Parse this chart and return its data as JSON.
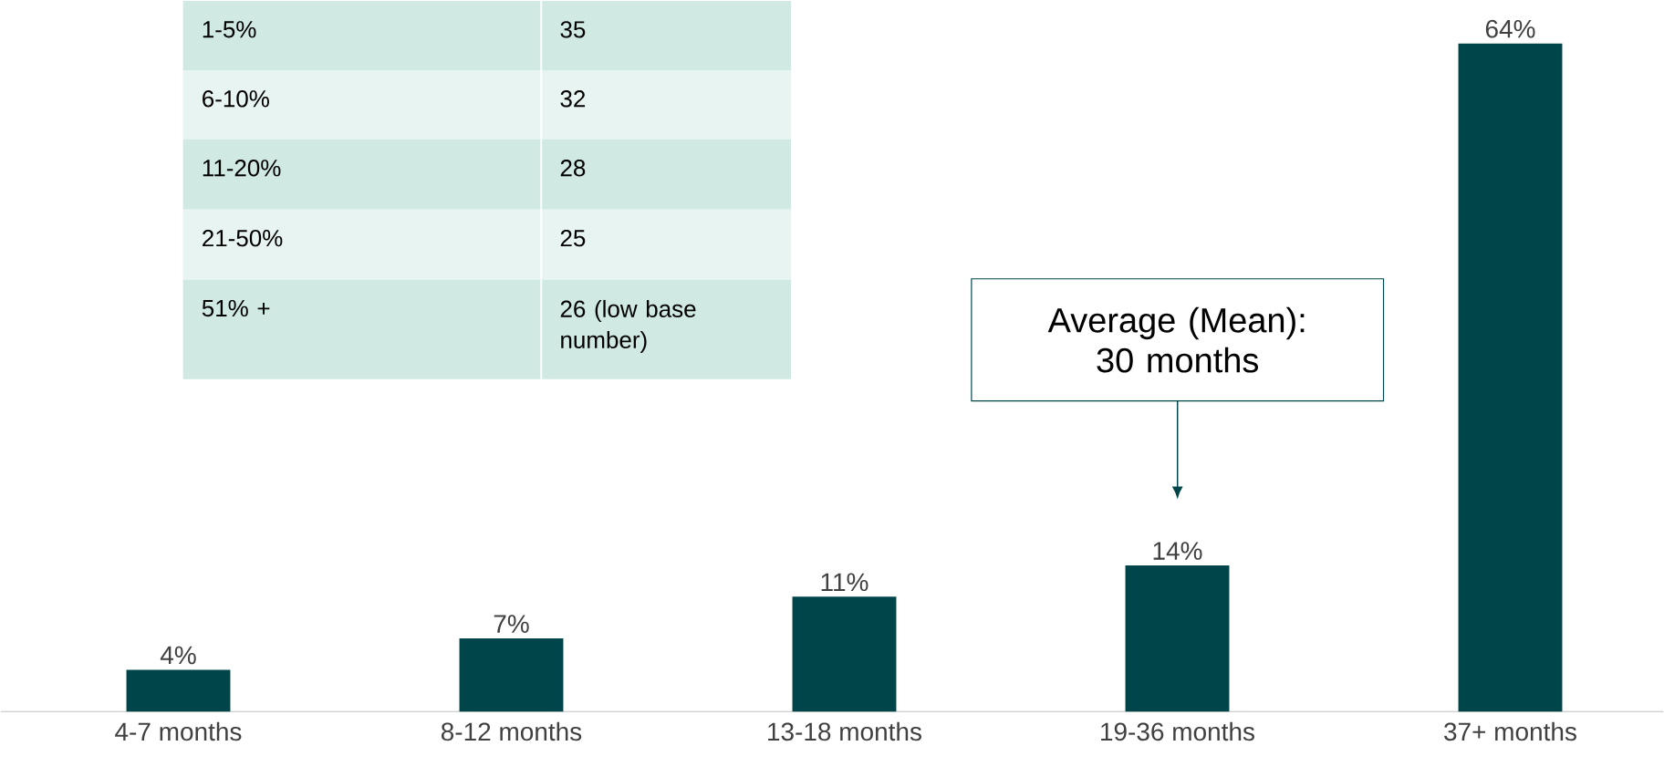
{
  "chart_data": {
    "type": "bar",
    "categories": [
      "4-7 months",
      "8-12 months",
      "13-18 months",
      "19-36 months",
      "37+ months"
    ],
    "values": [
      4,
      7,
      11,
      14,
      64
    ],
    "value_labels": [
      "4%",
      "7%",
      "11%",
      "14%",
      "64%"
    ],
    "color": "#00454a",
    "annotations": [
      "1-5%",
      "35",
      "6-10%",
      "32",
      "11-20%",
      "28",
      "21-50%",
      "25",
      "51% +",
      "26 (low base number)",
      "Average (Mean): 30 months"
    ]
  }
}
